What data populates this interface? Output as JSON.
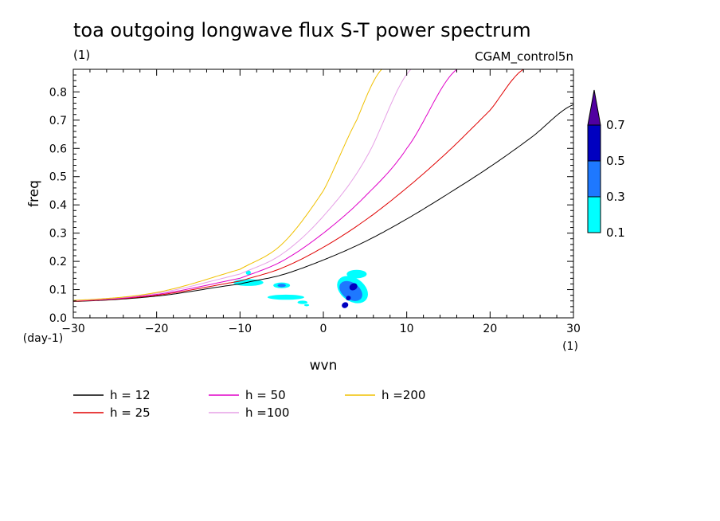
{
  "chart_data": {
    "type": "line",
    "title": "toa outgoing longwave flux S-T power spectrum",
    "subtitle_left": "(1)",
    "subtitle_right": "CGAM_control5n",
    "xlabel": "wvn",
    "ylabel": "freq",
    "x_unit": "(1)",
    "y_unit": "(day-1)",
    "xlim": [
      -30,
      30
    ],
    "ylim": [
      0,
      0.88
    ],
    "x_ticks": [
      -30,
      -20,
      -10,
      0,
      10,
      20,
      30
    ],
    "x_tick_labels": [
      "−30",
      "−20",
      "−10",
      "0",
      "10",
      "20",
      "30"
    ],
    "y_ticks": [
      0.0,
      0.1,
      0.2,
      0.3,
      0.4,
      0.5,
      0.6,
      0.7,
      0.8
    ],
    "y_tick_labels": [
      "0.0",
      "0.1",
      "0.2",
      "0.3",
      "0.4",
      "0.5",
      "0.6",
      "0.7",
      "0.8"
    ],
    "series": [
      {
        "name": "h = 12",
        "label": "h = 12",
        "color": "#000000",
        "x": [
          -30,
          -20,
          -10,
          -5,
          0,
          5,
          10,
          15,
          20,
          25,
          30
        ],
        "y": [
          0.058,
          0.077,
          0.12,
          0.152,
          0.205,
          0.27,
          0.35,
          0.44,
          0.535,
          0.64,
          0.755
        ]
      },
      {
        "name": "h = 25",
        "label": "h = 25",
        "color": "#e00000",
        "x": [
          -30,
          -20,
          -10,
          -5,
          0,
          5,
          10,
          15,
          20,
          24
        ],
        "y": [
          0.059,
          0.08,
          0.13,
          0.176,
          0.25,
          0.345,
          0.46,
          0.59,
          0.735,
          0.88
        ]
      },
      {
        "name": "h = 50",
        "label": "h = 50",
        "color": "#e000c8",
        "x": [
          -30,
          -20,
          -10,
          -5,
          0,
          5,
          10,
          16
        ],
        "y": [
          0.06,
          0.083,
          0.14,
          0.2,
          0.3,
          0.43,
          0.6,
          0.88
        ]
      },
      {
        "name": "h =100",
        "label": "h =100",
        "color": "#e6a0e6",
        "x": [
          -30,
          -20,
          -10,
          -5,
          0,
          5,
          10.5
        ],
        "y": [
          0.061,
          0.087,
          0.155,
          0.225,
          0.36,
          0.56,
          0.88
        ]
      },
      {
        "name": "h =200",
        "label": "h =200",
        "color": "#f0c000",
        "x": [
          -30,
          -20,
          -10,
          -5,
          0,
          4,
          7
        ],
        "y": [
          0.062,
          0.09,
          0.172,
          0.26,
          0.45,
          0.7,
          0.88
        ]
      }
    ],
    "contour_levels": [
      0.1,
      0.3,
      0.5,
      0.7
    ],
    "contour_colors": [
      "#00ffff",
      "#1e78ff",
      "#0000c0",
      "#5000a0"
    ],
    "colorbar_labels": [
      "0.1",
      "0.3",
      "0.5",
      "0.7"
    ],
    "contour_regions": [
      {
        "level": 0.1,
        "cx": 3.5,
        "cy": 0.1,
        "rx": 1.4,
        "ry": 0.06,
        "rot": 55
      },
      {
        "level": 0.1,
        "cx": 4.0,
        "cy": 0.155,
        "rx": 1.2,
        "ry": 0.015,
        "rot": 0
      },
      {
        "level": 0.1,
        "cx": -9.0,
        "cy": 0.125,
        "rx": 1.8,
        "ry": 0.012,
        "rot": 0
      },
      {
        "level": 0.1,
        "cx": -5.0,
        "cy": 0.115,
        "rx": 1.0,
        "ry": 0.01,
        "rot": 0
      },
      {
        "level": 0.1,
        "cx": -4.5,
        "cy": 0.073,
        "rx": 2.2,
        "ry": 0.009,
        "rot": 0
      },
      {
        "level": 0.1,
        "cx": -2.5,
        "cy": 0.055,
        "rx": 0.6,
        "ry": 0.006,
        "rot": 0
      },
      {
        "level": 0.1,
        "cx": -9.0,
        "cy": 0.16,
        "rx": 0.3,
        "ry": 0.008,
        "rot": 0
      },
      {
        "level": 0.1,
        "cx": -2.0,
        "cy": 0.045,
        "rx": 0.3,
        "ry": 0.004,
        "rot": 0
      },
      {
        "level": 0.3,
        "cx": 3.3,
        "cy": 0.095,
        "rx": 1.0,
        "ry": 0.045,
        "rot": 55
      },
      {
        "level": 0.3,
        "cx": -5.0,
        "cy": 0.115,
        "rx": 0.5,
        "ry": 0.006,
        "rot": 0
      },
      {
        "level": 0.5,
        "cx": 3.6,
        "cy": 0.11,
        "rx": 0.5,
        "ry": 0.012,
        "rot": 30
      },
      {
        "level": 0.5,
        "cx": 2.6,
        "cy": 0.045,
        "rx": 0.4,
        "ry": 0.01,
        "rot": 30
      },
      {
        "level": 0.5,
        "cx": 3.0,
        "cy": 0.07,
        "rx": 0.3,
        "ry": 0.008,
        "rot": 30
      }
    ]
  }
}
